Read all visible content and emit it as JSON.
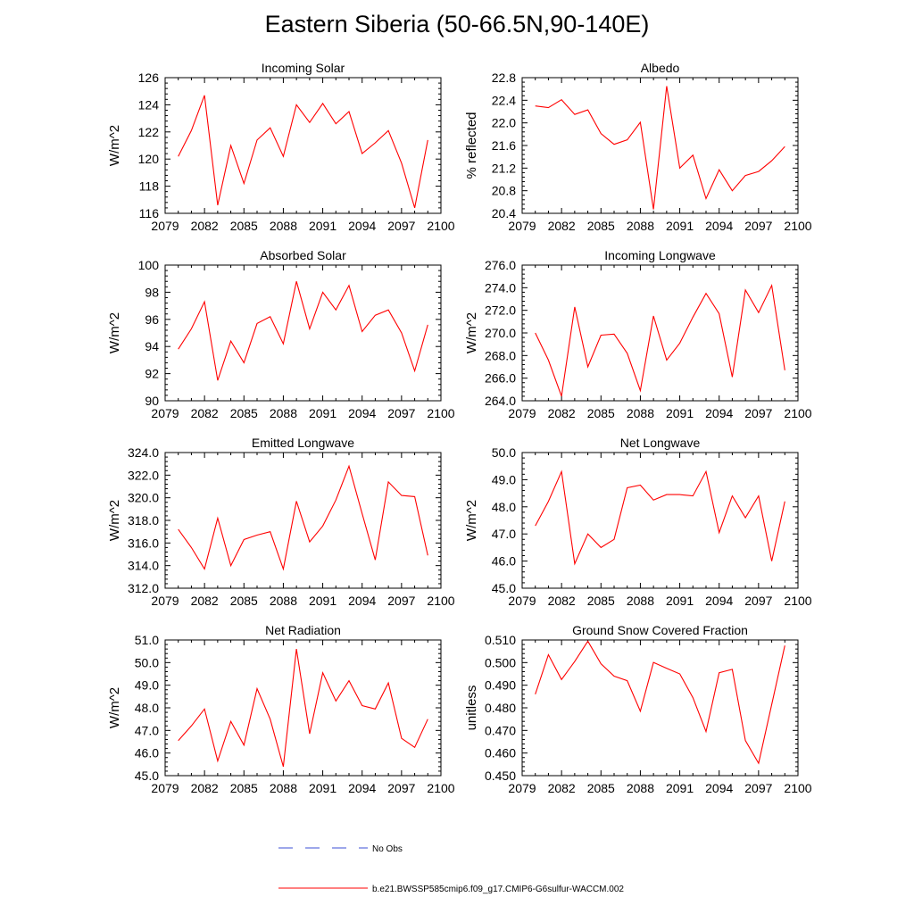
{
  "page_title": "Eastern Siberia (50-66.5N,90-140E)",
  "line_color": "#ff0000",
  "obs_color": "#3b4fd6",
  "legend": {
    "obs_label": "No Obs",
    "model_label": "b.e21.BWSSP585cmip6.f09_g17.CMIP6-G6sulfur-WACCM.002"
  },
  "chart_data": [
    {
      "type": "line",
      "title": "Incoming Solar",
      "ylabel": "W/m^2",
      "xlim": [
        2079,
        2100
      ],
      "xticks": [
        2079,
        2082,
        2085,
        2088,
        2091,
        2094,
        2097,
        2100
      ],
      "ylim": [
        116,
        126
      ],
      "yticks": [
        116,
        118,
        120,
        122,
        124,
        126
      ],
      "ydecimals": 0,
      "x": [
        2080,
        2081,
        2082,
        2083,
        2084,
        2085,
        2086,
        2087,
        2088,
        2089,
        2090,
        2091,
        2092,
        2093,
        2094,
        2095,
        2096,
        2097,
        2098,
        2099
      ],
      "series": [
        {
          "values": [
            120.2,
            122.1,
            124.7,
            116.6,
            121.0,
            118.2,
            121.4,
            122.3,
            120.2,
            124.0,
            122.7,
            124.1,
            122.6,
            123.5,
            120.4,
            121.2,
            122.1,
            119.7,
            116.4,
            121.4
          ]
        }
      ]
    },
    {
      "type": "line",
      "title": "Albedo",
      "ylabel": "% reflected",
      "xlim": [
        2079,
        2100
      ],
      "xticks": [
        2079,
        2082,
        2085,
        2088,
        2091,
        2094,
        2097,
        2100
      ],
      "ylim": [
        20.4,
        22.8
      ],
      "yticks": [
        20.4,
        20.8,
        21.2,
        21.6,
        22.0,
        22.4,
        22.8
      ],
      "ydecimals": 1,
      "x": [
        2080,
        2081,
        2082,
        2083,
        2084,
        2085,
        2086,
        2087,
        2088,
        2089,
        2090,
        2091,
        2092,
        2093,
        2094,
        2095,
        2096,
        2097,
        2098,
        2099
      ],
      "series": [
        {
          "values": [
            22.3,
            22.27,
            22.41,
            22.15,
            22.23,
            21.81,
            21.62,
            21.7,
            22.01,
            20.47,
            22.65,
            21.2,
            21.43,
            20.66,
            21.17,
            20.8,
            21.07,
            21.14,
            21.33,
            21.58
          ]
        }
      ]
    },
    {
      "type": "line",
      "title": "Absorbed Solar",
      "ylabel": "W/m^2",
      "xlim": [
        2079,
        2100
      ],
      "xticks": [
        2079,
        2082,
        2085,
        2088,
        2091,
        2094,
        2097,
        2100
      ],
      "ylim": [
        90,
        100
      ],
      "yticks": [
        90,
        92,
        94,
        96,
        98,
        100
      ],
      "ydecimals": 0,
      "x": [
        2080,
        2081,
        2082,
        2083,
        2084,
        2085,
        2086,
        2087,
        2088,
        2089,
        2090,
        2091,
        2092,
        2093,
        2094,
        2095,
        2096,
        2097,
        2098,
        2099
      ],
      "series": [
        {
          "values": [
            93.8,
            95.3,
            97.3,
            91.5,
            94.4,
            92.8,
            95.7,
            96.2,
            94.2,
            98.8,
            95.3,
            98.0,
            96.7,
            98.5,
            95.1,
            96.3,
            96.7,
            95.0,
            92.2,
            95.6
          ]
        }
      ]
    },
    {
      "type": "line",
      "title": "Incoming Longwave",
      "ylabel": "W/m^2",
      "xlim": [
        2079,
        2100
      ],
      "xticks": [
        2079,
        2082,
        2085,
        2088,
        2091,
        2094,
        2097,
        2100
      ],
      "ylim": [
        264,
        276
      ],
      "yticks": [
        264,
        266,
        268,
        270,
        272,
        274,
        276
      ],
      "ydecimals": 1,
      "x": [
        2080,
        2081,
        2082,
        2083,
        2084,
        2085,
        2086,
        2087,
        2088,
        2089,
        2090,
        2091,
        2092,
        2093,
        2094,
        2095,
        2096,
        2097,
        2098,
        2099
      ],
      "series": [
        {
          "values": [
            270.0,
            267.6,
            264.4,
            272.3,
            267.0,
            269.8,
            269.9,
            268.2,
            264.9,
            271.5,
            267.6,
            269.1,
            271.4,
            273.5,
            271.7,
            266.1,
            273.8,
            271.8,
            274.2,
            266.7
          ]
        }
      ]
    },
    {
      "type": "line",
      "title": "Emitted Longwave",
      "ylabel": "W/m^2",
      "xlim": [
        2079,
        2100
      ],
      "xticks": [
        2079,
        2082,
        2085,
        2088,
        2091,
        2094,
        2097,
        2100
      ],
      "ylim": [
        312,
        324
      ],
      "yticks": [
        312,
        314,
        316,
        318,
        320,
        322,
        324
      ],
      "ydecimals": 1,
      "x": [
        2080,
        2081,
        2082,
        2083,
        2084,
        2085,
        2086,
        2087,
        2088,
        2089,
        2090,
        2091,
        2092,
        2093,
        2094,
        2095,
        2096,
        2097,
        2098,
        2099
      ],
      "series": [
        {
          "values": [
            317.2,
            315.6,
            313.7,
            318.2,
            314.0,
            316.3,
            316.7,
            317.0,
            313.7,
            319.7,
            316.1,
            317.5,
            319.8,
            322.8,
            318.6,
            314.5,
            321.4,
            320.2,
            320.1,
            314.9
          ]
        }
      ]
    },
    {
      "type": "line",
      "title": "Net Longwave",
      "ylabel": "W/m^2",
      "xlim": [
        2079,
        2100
      ],
      "xticks": [
        2079,
        2082,
        2085,
        2088,
        2091,
        2094,
        2097,
        2100
      ],
      "ylim": [
        45,
        50
      ],
      "yticks": [
        45,
        46,
        47,
        48,
        49,
        50
      ],
      "ydecimals": 1,
      "x": [
        2080,
        2081,
        2082,
        2083,
        2084,
        2085,
        2086,
        2087,
        2088,
        2089,
        2090,
        2091,
        2092,
        2093,
        2094,
        2095,
        2096,
        2097,
        2098,
        2099
      ],
      "series": [
        {
          "values": [
            47.3,
            48.2,
            49.3,
            45.9,
            47.0,
            46.5,
            46.8,
            48.7,
            48.8,
            48.25,
            48.45,
            48.45,
            48.4,
            49.3,
            47.05,
            48.4,
            47.6,
            48.4,
            46.0,
            48.2
          ]
        }
      ]
    },
    {
      "type": "line",
      "title": "Net Radiation",
      "ylabel": "W/m^2",
      "xlim": [
        2079,
        2100
      ],
      "xticks": [
        2079,
        2082,
        2085,
        2088,
        2091,
        2094,
        2097,
        2100
      ],
      "ylim": [
        45,
        51
      ],
      "yticks": [
        45,
        46,
        47,
        48,
        49,
        50,
        51
      ],
      "ydecimals": 1,
      "x": [
        2080,
        2081,
        2082,
        2083,
        2084,
        2085,
        2086,
        2087,
        2088,
        2089,
        2090,
        2091,
        2092,
        2093,
        2094,
        2095,
        2096,
        2097,
        2098,
        2099
      ],
      "series": [
        {
          "values": [
            46.55,
            47.2,
            47.95,
            45.65,
            47.4,
            46.35,
            48.85,
            47.5,
            45.4,
            50.6,
            46.85,
            49.55,
            48.3,
            49.2,
            48.1,
            47.95,
            49.1,
            46.65,
            46.25,
            47.5
          ]
        }
      ]
    },
    {
      "type": "line",
      "title": "Ground Snow Covered Fraction",
      "ylabel": "unitless",
      "xlim": [
        2079,
        2100
      ],
      "xticks": [
        2079,
        2082,
        2085,
        2088,
        2091,
        2094,
        2097,
        2100
      ],
      "ylim": [
        0.45,
        0.51
      ],
      "yticks": [
        0.45,
        0.46,
        0.47,
        0.48,
        0.49,
        0.5,
        0.51
      ],
      "ydecimals": 3,
      "x": [
        2080,
        2081,
        2082,
        2083,
        2084,
        2085,
        2086,
        2087,
        2088,
        2089,
        2090,
        2091,
        2092,
        2093,
        2094,
        2095,
        2096,
        2097,
        2098,
        2099
      ],
      "series": [
        {
          "values": [
            0.486,
            0.5035,
            0.4925,
            0.5005,
            0.5095,
            0.4995,
            0.494,
            0.492,
            0.4785,
            0.5001,
            0.4975,
            0.495,
            0.4845,
            0.4695,
            0.4955,
            0.497,
            0.4655,
            0.4555,
            0.4815,
            0.5075
          ]
        }
      ]
    }
  ]
}
